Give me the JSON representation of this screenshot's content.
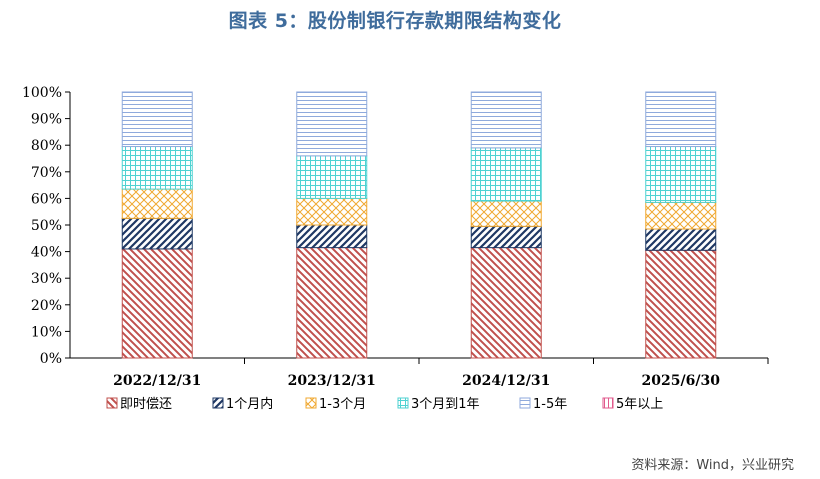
{
  "title": "图表 5：股份制银行存款期限结构变化",
  "source": "资料来源：Wind，兴业研究",
  "chart_data": {
    "type": "bar",
    "stacked": true,
    "categories": [
      "2022/12/31",
      "2023/12/31",
      "2024/12/31",
      "2025/6/30"
    ],
    "ylim": [
      0,
      100
    ],
    "yticks": [
      "0%",
      "10%",
      "20%",
      "30%",
      "40%",
      "50%",
      "60%",
      "70%",
      "80%",
      "90%",
      "100%"
    ],
    "legend_position": "bottom",
    "series": [
      {
        "name": "即时偿还",
        "values": [
          41,
          41.5,
          41.5,
          40.5
        ],
        "color": "#c0504d",
        "pattern": "diag-back"
      },
      {
        "name": "1个月内",
        "values": [
          11.5,
          8.5,
          8,
          8
        ],
        "color": "#1f3864",
        "pattern": "diag-fwd"
      },
      {
        "name": "1-3个月",
        "values": [
          11,
          10,
          9.5,
          10
        ],
        "color": "#f0a830",
        "pattern": "crosshatch"
      },
      {
        "name": "3个月到1年",
        "values": [
          16,
          16,
          20,
          21
        ],
        "color": "#4fd2d2",
        "pattern": "grid"
      },
      {
        "name": "1-5年",
        "values": [
          20.5,
          24,
          21,
          20.5
        ],
        "color": "#8faadc",
        "pattern": "hlines"
      },
      {
        "name": "5年以上",
        "values": [
          0,
          0,
          0,
          0
        ],
        "color": "#e05a8c",
        "pattern": "vlines"
      }
    ]
  }
}
